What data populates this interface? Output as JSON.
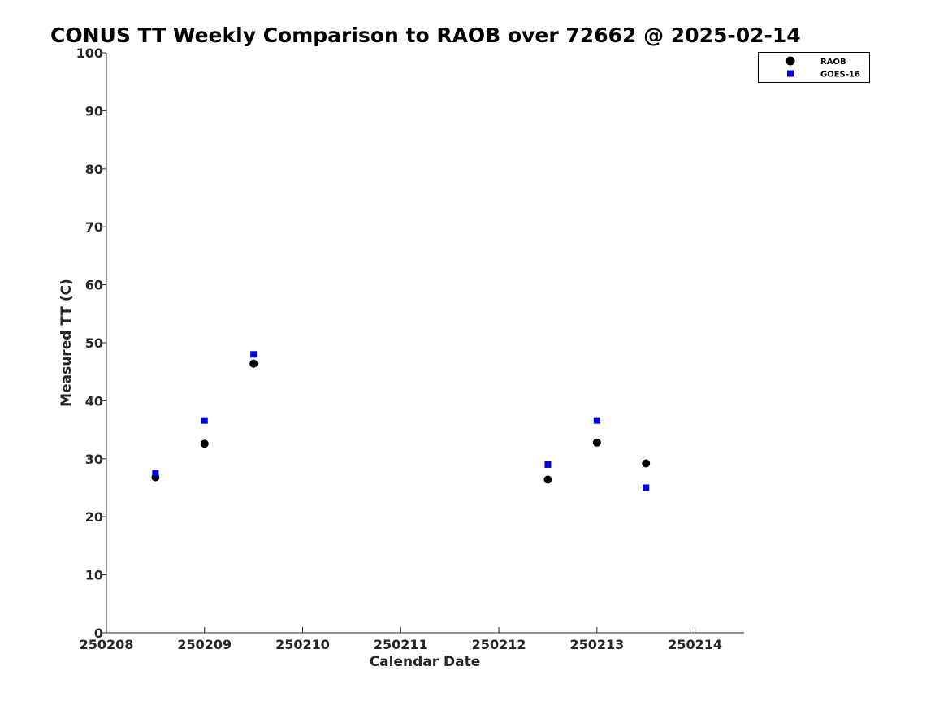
{
  "chart_data": {
    "type": "scatter",
    "title": "CONUS TT Weekly Comparison to RAOB over 72662 @ 2025-02-14",
    "xlabel": "Calendar Date",
    "ylabel": "Measured TT (C)",
    "xlim": [
      250208,
      250214.5
    ],
    "ylim": [
      0,
      100
    ],
    "xticks": [
      250208,
      250209,
      250210,
      250211,
      250212,
      250213,
      250214
    ],
    "xtick_labels": [
      "250208",
      "250209",
      "250210",
      "250211",
      "250212",
      "250213",
      "250214"
    ],
    "yticks": [
      0,
      10,
      20,
      30,
      40,
      50,
      60,
      70,
      80,
      90,
      100
    ],
    "yscale": "linear",
    "grid": false,
    "legend_position": "top-right, outside plot area",
    "series": [
      {
        "name": "RAOB",
        "marker": "circle",
        "color": "#000000",
        "points": [
          {
            "x": 250208.5,
            "y": 26.8
          },
          {
            "x": 250209.0,
            "y": 32.6
          },
          {
            "x": 250209.5,
            "y": 46.4
          },
          {
            "x": 250212.5,
            "y": 26.4
          },
          {
            "x": 250213.0,
            "y": 32.8
          },
          {
            "x": 250213.5,
            "y": 29.2
          }
        ]
      },
      {
        "name": "GOES-16",
        "marker": "square",
        "color": "#0000dd",
        "points": [
          {
            "x": 250208.5,
            "y": 27.5
          },
          {
            "x": 250209.0,
            "y": 36.6
          },
          {
            "x": 250209.5,
            "y": 48.0
          },
          {
            "x": 250212.5,
            "y": 29.0
          },
          {
            "x": 250213.0,
            "y": 36.6
          },
          {
            "x": 250213.5,
            "y": 25.0
          }
        ]
      }
    ]
  }
}
